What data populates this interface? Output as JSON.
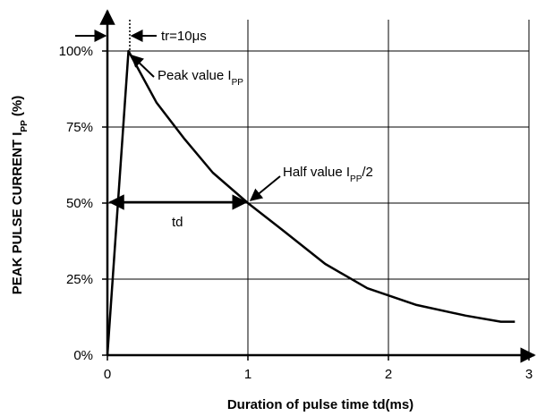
{
  "chart_data": {
    "type": "line",
    "xlabel": "Duration of pulse time td(ms)",
    "ylabel": [
      "PEAK PULSE CURRENT I",
      "PP",
      " (%)"
    ],
    "annotations": {
      "rise": "tr=10μs",
      "peak": [
        "Peak value I",
        "PP"
      ],
      "half": [
        "Half value I",
        "PP",
        "/2"
      ],
      "td": "td"
    },
    "xlim": [
      0,
      3
    ],
    "ylim": [
      0,
      100
    ],
    "xticks": [
      0,
      1,
      2,
      3
    ],
    "yticks": [
      {
        "value": 0,
        "label": "0%"
      },
      {
        "value": 25,
        "label": "25%"
      },
      {
        "value": 50,
        "label": "50%"
      },
      {
        "value": 75,
        "label": "75%"
      },
      {
        "value": 100,
        "label": "100%"
      }
    ],
    "grid": true,
    "series": [
      {
        "color": "#000000",
        "x": [
          0,
          0.15,
          0.35,
          0.55,
          0.75,
          1,
          1.25,
          1.55,
          1.85,
          2.2,
          2.55,
          2.8,
          2.9
        ],
        "values": [
          0,
          100,
          83,
          71,
          60,
          50,
          41,
          30,
          22,
          16.5,
          13,
          11,
          11
        ]
      }
    ]
  }
}
